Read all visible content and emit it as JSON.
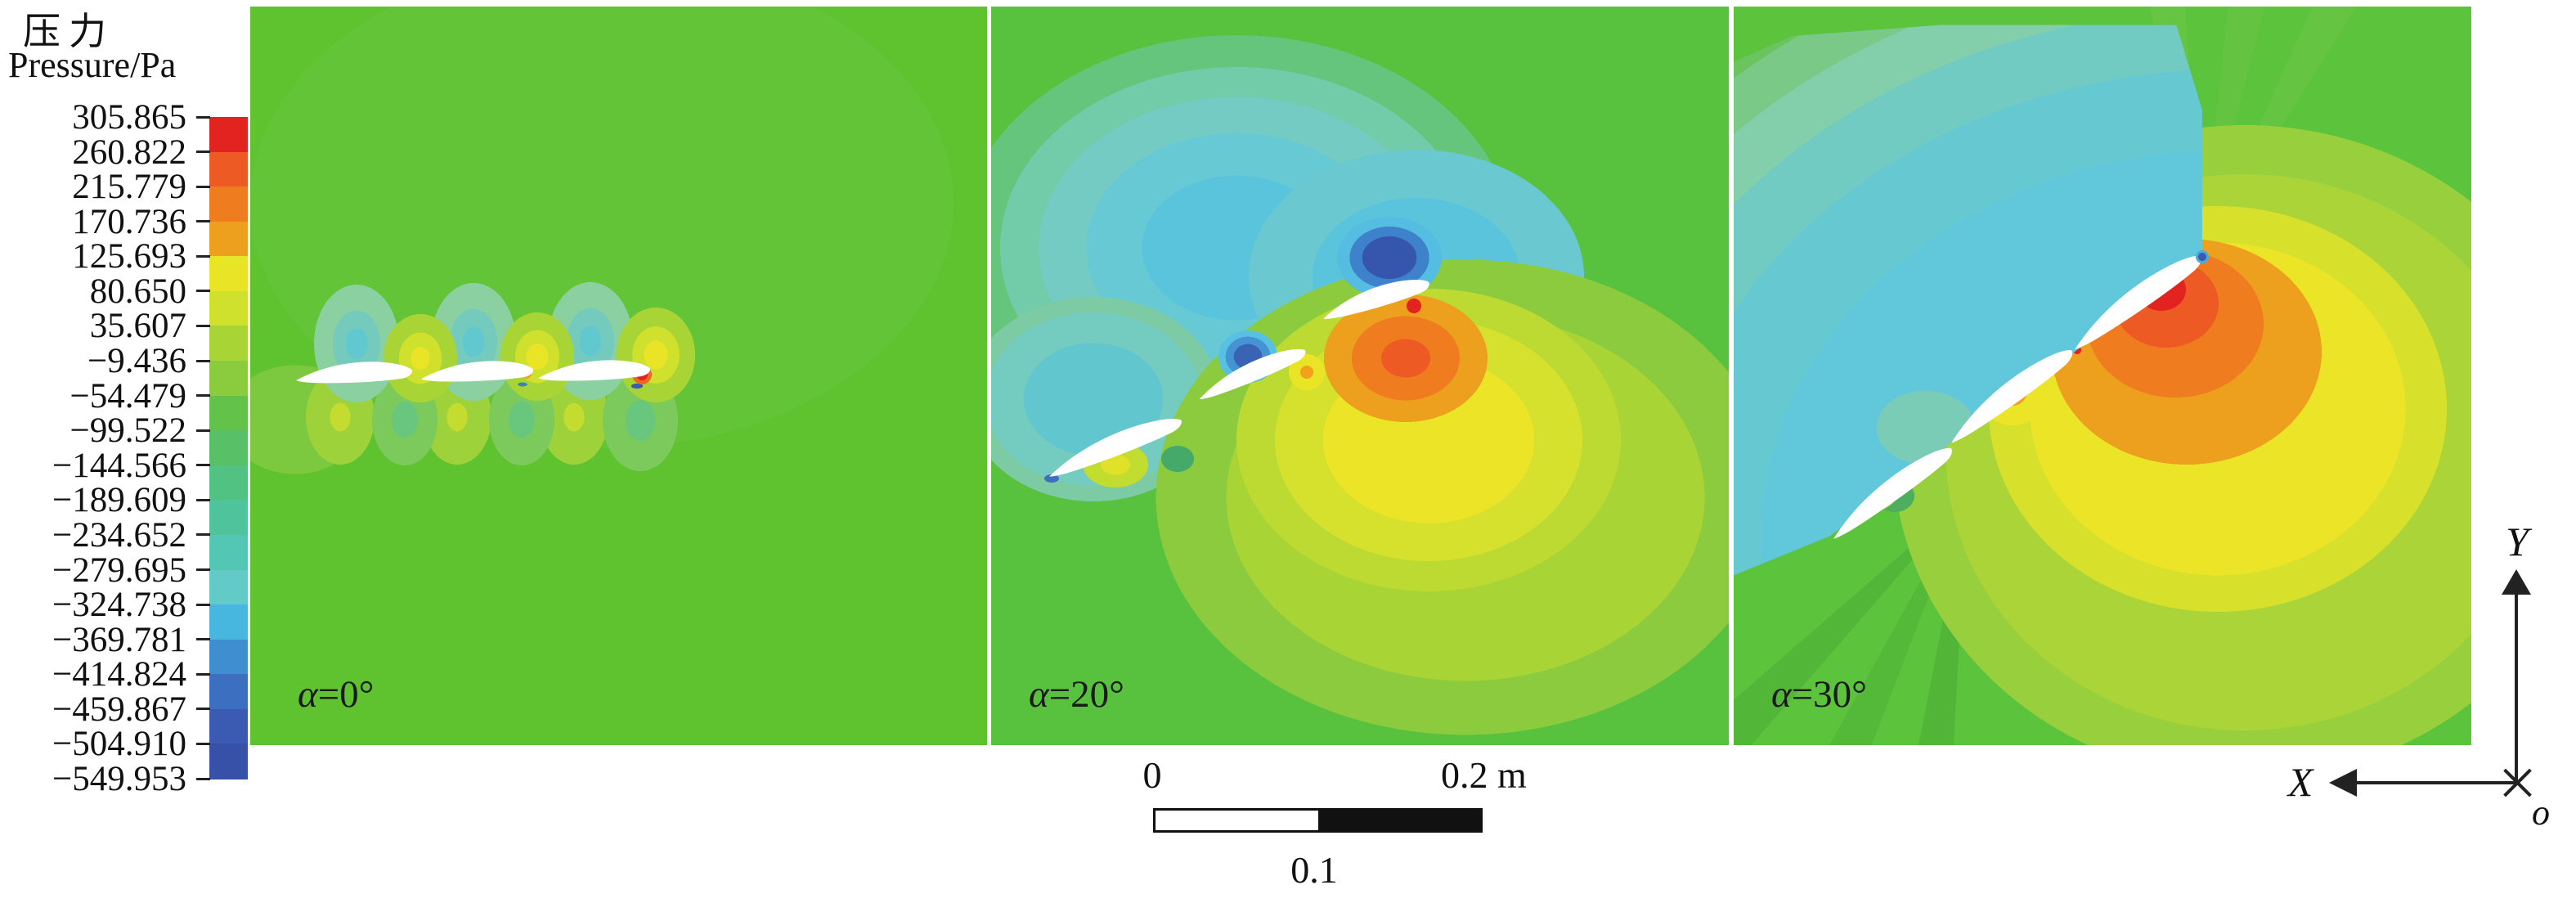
{
  "legend": {
    "title_zh": "压力",
    "title_en": "Pressure/Pa",
    "values": [
      "305.865",
      "260.822",
      "215.779",
      "170.736",
      "125.693",
      "80.650",
      "35.607",
      "−9.436",
      "−54.479",
      "−99.522",
      "−144.566",
      "−189.609",
      "−234.652",
      "−279.695",
      "−324.738",
      "−369.781",
      "−414.824",
      "−459.867",
      "−504.910",
      "−549.953"
    ]
  },
  "colorbar": {
    "colors": [
      "#e2231f",
      "#ed5a23",
      "#f07c20",
      "#eda01d",
      "#e9e426",
      "#cfe02d",
      "#a9d436",
      "#8bcb3e",
      "#63c24a",
      "#58c167",
      "#52c282",
      "#4fc39c",
      "#53c7b4",
      "#63cbc7",
      "#48b7e0",
      "#3f8ecf",
      "#3c6fc0",
      "#3a5bb1",
      "#3751a8"
    ]
  },
  "panels": [
    {
      "label": "α=0°"
    },
    {
      "label": "α=20°"
    },
    {
      "label": "α=30°"
    }
  ],
  "scale_bar": {
    "zero": "0",
    "end": "0.2 m",
    "mid": "0.1"
  },
  "axes": {
    "x": "X",
    "y": "Y",
    "origin": "o"
  },
  "chart_data": {
    "type": "heatmap",
    "subtype": "CFD pressure contour, three-element airfoil cascade",
    "title": "压力 Pressure/Pa",
    "unit": "Pa",
    "colorbar_levels": [
      305.865,
      260.822,
      215.779,
      170.736,
      125.693,
      80.65,
      35.607,
      -9.436,
      -54.479,
      -99.522,
      -144.566,
      -189.609,
      -234.652,
      -279.695,
      -324.738,
      -369.781,
      -414.824,
      -459.867,
      -504.91,
      -549.953
    ],
    "colorbar_colors": [
      "#e2231f",
      "#ed5a23",
      "#f07c20",
      "#eda01d",
      "#e9e426",
      "#cfe02d",
      "#a9d436",
      "#8bcb3e",
      "#63c24a",
      "#58c167",
      "#52c282",
      "#4fc39c",
      "#53c7b4",
      "#63cbc7",
      "#48b7e0",
      "#3f8ecf",
      "#3c6fc0",
      "#3a5bb1",
      "#3751a8"
    ],
    "legend_position": "left",
    "panels": [
      {
        "label": "α=0°",
        "alpha_deg": 0,
        "description": "Three airfoils nearly horizontal; field mostly uniform green (~-30 Pa); weak teal suction lobes above blades, weak yellow high-pressure lobes between/below blades; small orange/red stagnation spots and tiny blue suction specks at leading edges."
      },
      {
        "label": "α=20°",
        "alpha_deg": 20,
        "description": "Cascade inclined ~20°; large cyan/teal low-pressure region above and left of blades; dark blue suction peaks (~-500 Pa) above upper two blades; strong yellow-orange high pressure below, red stagnation point (~300 Pa) at top blade leading edge."
      },
      {
        "label": "α=30°",
        "alpha_deg": 30,
        "description": "Cascade inclined ~30°; broad uniform cyan low-pressure zone covering upper-left half; intense red/orange high-pressure bullseye under top blade leading edge with wide yellow halo; green wedges radiating from leading edge and below cascade."
      }
    ],
    "airfoils_per_panel": 3,
    "scale_bar": {
      "start": 0,
      "mid": 0.1,
      "end": 0.2,
      "unit": "m"
    },
    "axes": {
      "x": "X (arrow points left)",
      "y": "Y (arrow points up)",
      "origin": "o (marked with ×)"
    }
  }
}
